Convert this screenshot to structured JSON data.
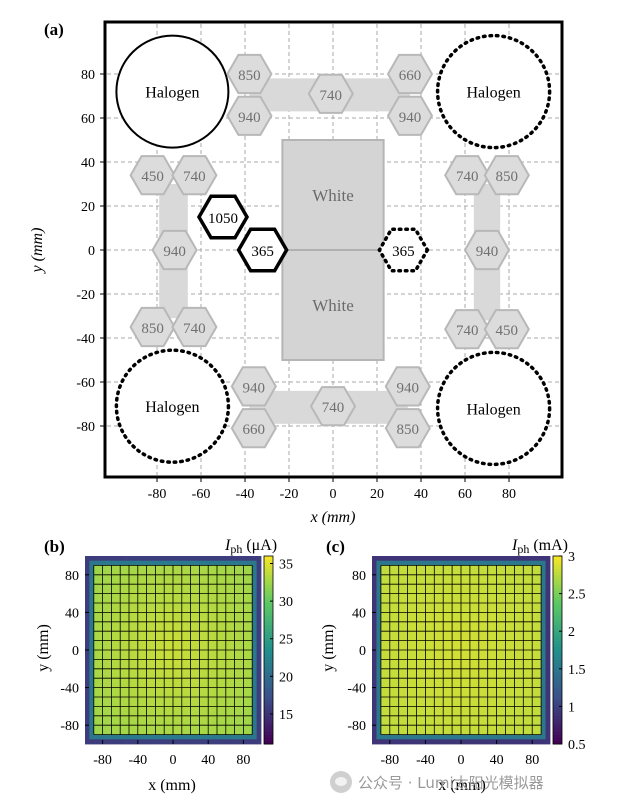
{
  "panel_a": {
    "label": "(a)",
    "xlabel": "x (mm)",
    "ylabel": "y (mm)",
    "x_ticks": [
      -80,
      -60,
      -40,
      -20,
      0,
      20,
      40,
      60,
      80
    ],
    "y_ticks": [
      80,
      60,
      40,
      20,
      0,
      -20,
      -40,
      -60,
      -80
    ],
    "halogen_label": "Halogen",
    "white_label": "White",
    "halogens": [
      {
        "x": -73,
        "y": 72,
        "style": "solid"
      },
      {
        "x": 73,
        "y": 72,
        "style": "dotted"
      },
      {
        "x": -73,
        "y": -71,
        "style": "dotted"
      },
      {
        "x": 73,
        "y": -72,
        "style": "dotted"
      }
    ],
    "white_source": {
      "x_range": [
        -23,
        23
      ],
      "y_range": [
        -50,
        50
      ]
    },
    "leds": [
      {
        "label": "850",
        "x": -38,
        "y": 80,
        "style": "gray"
      },
      {
        "label": "940",
        "x": -38,
        "y": 61,
        "style": "gray"
      },
      {
        "label": "740",
        "x": -1,
        "y": 71,
        "style": "gray"
      },
      {
        "label": "660",
        "x": 35,
        "y": 80,
        "style": "gray"
      },
      {
        "label": "940",
        "x": 35,
        "y": 61,
        "style": "gray"
      },
      {
        "label": "450",
        "x": -82,
        "y": 34,
        "style": "gray"
      },
      {
        "label": "740",
        "x": -63,
        "y": 34,
        "style": "gray"
      },
      {
        "label": "940",
        "x": -72,
        "y": 0,
        "style": "gray"
      },
      {
        "label": "850",
        "x": -82,
        "y": -35,
        "style": "gray"
      },
      {
        "label": "740",
        "x": -63,
        "y": -35,
        "style": "gray"
      },
      {
        "label": "740",
        "x": 61,
        "y": 34,
        "style": "gray"
      },
      {
        "label": "850",
        "x": 79,
        "y": 34,
        "style": "gray"
      },
      {
        "label": "940",
        "x": 70,
        "y": 0,
        "style": "gray"
      },
      {
        "label": "740",
        "x": 61,
        "y": -36,
        "style": "gray"
      },
      {
        "label": "450",
        "x": 79,
        "y": -36,
        "style": "gray"
      },
      {
        "label": "940",
        "x": -36,
        "y": -62,
        "style": "gray"
      },
      {
        "label": "660",
        "x": -36,
        "y": -81,
        "style": "gray"
      },
      {
        "label": "740",
        "x": 0,
        "y": -71,
        "style": "gray"
      },
      {
        "label": "940",
        "x": 34,
        "y": -62,
        "style": "gray"
      },
      {
        "label": "850",
        "x": 34,
        "y": -81,
        "style": "gray"
      },
      {
        "label": "1050",
        "x": -50,
        "y": 15,
        "style": "bold"
      },
      {
        "label": "365",
        "x": -32,
        "y": 0,
        "style": "bold"
      },
      {
        "label": "365",
        "x": 32,
        "y": 0,
        "style": "dotted"
      }
    ]
  },
  "panel_b": {
    "label": "(b)",
    "cbar_symbol": "I",
    "cbar_sub": "ph",
    "cbar_unit": " (μA)",
    "cbar_ticks": [
      35,
      30,
      25,
      20,
      15
    ],
    "cbar_range": [
      11,
      36
    ],
    "xlabel": "x (mm)",
    "ylabel": "y (mm)",
    "x_ticks": [
      -80,
      -40,
      0,
      40,
      80
    ],
    "y_ticks": [
      80,
      40,
      0,
      -40,
      -80
    ]
  },
  "panel_c": {
    "label": "(c)",
    "cbar_symbol": "I",
    "cbar_sub": "ph",
    "cbar_unit": " (mA)",
    "cbar_ticks": [
      "3",
      "2.5",
      "2",
      "1.5",
      "1",
      "0.5"
    ],
    "cbar_range": [
      0.5,
      3
    ],
    "xlabel": "x (mm)",
    "ylabel": "y (mm)",
    "x_ticks": [
      -80,
      -40,
      0,
      40,
      80
    ],
    "y_ticks": [
      80,
      40,
      0,
      -40,
      -80
    ]
  },
  "chart_data": [
    {
      "type": "heatmap",
      "title": "(b)",
      "xlabel": "x (mm)",
      "ylabel": "y (mm)",
      "xlim": [
        -100,
        100
      ],
      "ylim": [
        -100,
        100
      ],
      "colorbar_label": "Iph (μA)",
      "colorbar_range": [
        11,
        36
      ],
      "colorbar_ticks": [
        15,
        20,
        25,
        30,
        35
      ],
      "plateau_value": 32,
      "edge_value": 13,
      "uniform_region": [
        -90,
        90
      ]
    },
    {
      "type": "heatmap",
      "title": "(c)",
      "xlabel": "x (mm)",
      "ylabel": "y (mm)",
      "xlim": [
        -100,
        100
      ],
      "ylim": [
        -100,
        100
      ],
      "colorbar_label": "Iph (mA)",
      "colorbar_range": [
        0.5,
        3
      ],
      "colorbar_ticks": [
        0.5,
        1,
        1.5,
        2,
        2.5,
        3
      ],
      "plateau_value": 2.75,
      "edge_value": 0.6,
      "uniform_region": [
        -90,
        90
      ]
    }
  ],
  "watermark": {
    "text": "公众号 · Lumi太阳光模拟器"
  }
}
